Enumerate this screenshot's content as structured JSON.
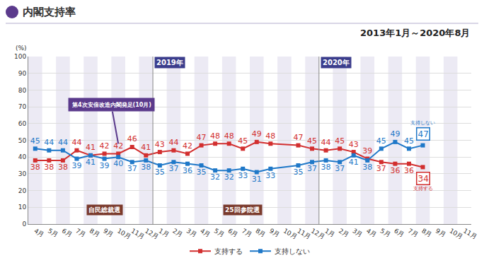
{
  "chart_data": {
    "type": "line",
    "title": "内閣支持率",
    "subtitle": "2013年1月～2020年8月",
    "y_label": "(%)",
    "categories": [
      "4月",
      "5月",
      "6月",
      "7月",
      "8月",
      "9月",
      "10月",
      "11月",
      "12月",
      "1月",
      "2月",
      "3月",
      "4月",
      "5月",
      "6月",
      "7月",
      "8月",
      "9月",
      "10月",
      "11月",
      "12月",
      "1月",
      "2月",
      "3月",
      "4月",
      "5月",
      "6月",
      "7月",
      "8月",
      "9月",
      "10月",
      "11月"
    ],
    "series": [
      {
        "name": "支持する",
        "color": "#d22f2f",
        "values": [
          38,
          38,
          38,
          44,
          41,
          42,
          42,
          46,
          41,
          43,
          44,
          42,
          47,
          48,
          48,
          45,
          49,
          48,
          null,
          47,
          45,
          44,
          45,
          43,
          39,
          37,
          36,
          36,
          34,
          null,
          null,
          null
        ]
      },
      {
        "name": "支持しない",
        "color": "#1f78c8",
        "values": [
          45,
          44,
          44,
          39,
          41,
          39,
          40,
          37,
          38,
          35,
          37,
          36,
          35,
          32,
          32,
          33,
          31,
          33,
          null,
          35,
          37,
          38,
          37,
          41,
          38,
          45,
          49,
          45,
          47,
          null,
          null,
          null
        ]
      }
    ],
    "ylim": [
      0,
      100
    ],
    "yticks": [
      0,
      10,
      20,
      30,
      40,
      50,
      60,
      70,
      80,
      90,
      100
    ],
    "grid": true,
    "data_labels": true,
    "legend": "bottom",
    "marker": "square",
    "year_labels": [
      {
        "text": "2019年",
        "x": 9
      },
      {
        "text": "2020年",
        "x": 21
      }
    ],
    "events": [
      {
        "text": "自民総裁選",
        "x": 5
      },
      {
        "text": "25回参院選",
        "x": 15
      }
    ],
    "callout": {
      "text": "第4次安倍改造内閣発足(10月)",
      "x": 6
    }
  }
}
